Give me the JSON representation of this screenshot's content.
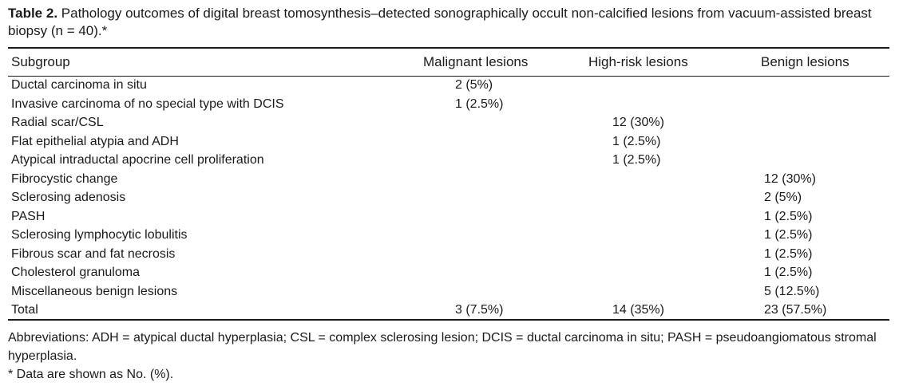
{
  "caption": {
    "label": "Table 2.",
    "text": " Pathology outcomes of digital breast tomosynthesis–detected sonographically occult non-calcified lesions from vacuum-assisted breast biopsy (n = 40).*"
  },
  "table": {
    "headers": {
      "subgroup": "Subgroup",
      "malignant": "Malignant lesions",
      "high_risk": "High-risk lesions",
      "benign": "Benign lesions"
    },
    "rows": [
      {
        "subgroup": "Ductal carcinoma in situ",
        "malignant": "2 (5%)",
        "high_risk": "",
        "benign": ""
      },
      {
        "subgroup": "Invasive carcinoma of no special type with DCIS",
        "malignant": "1 (2.5%)",
        "high_risk": "",
        "benign": ""
      },
      {
        "subgroup": "Radial scar/CSL",
        "malignant": "",
        "high_risk": "12 (30%)",
        "benign": ""
      },
      {
        "subgroup": "Flat epithelial atypia and ADH",
        "malignant": "",
        "high_risk": "1 (2.5%)",
        "benign": ""
      },
      {
        "subgroup": "Atypical intraductal apocrine cell proliferation",
        "malignant": "",
        "high_risk": "1 (2.5%)",
        "benign": ""
      },
      {
        "subgroup": "Fibrocystic change",
        "malignant": "",
        "high_risk": "",
        "benign": "12 (30%)"
      },
      {
        "subgroup": "Sclerosing adenosis",
        "malignant": "",
        "high_risk": "",
        "benign": "2 (5%)"
      },
      {
        "subgroup": "PASH",
        "malignant": "",
        "high_risk": "",
        "benign": "1 (2.5%)"
      },
      {
        "subgroup": "Sclerosing lymphocytic lobulitis",
        "malignant": "",
        "high_risk": "",
        "benign": "1 (2.5%)"
      },
      {
        "subgroup": "Fibrous scar and fat necrosis",
        "malignant": "",
        "high_risk": "",
        "benign": "1 (2.5%)"
      },
      {
        "subgroup": "Cholesterol granuloma",
        "malignant": "",
        "high_risk": "",
        "benign": "1 (2.5%)"
      },
      {
        "subgroup": "Miscellaneous benign lesions",
        "malignant": "",
        "high_risk": "",
        "benign": "5 (12.5%)"
      },
      {
        "subgroup": "Total",
        "malignant": "3 (7.5%)",
        "high_risk": "14 (35%)",
        "benign": "23 (57.5%)"
      }
    ]
  },
  "notes": {
    "abbreviations": "Abbreviations: ADH = atypical ductal hyperplasia; CSL = complex sclerosing lesion; DCIS = ductal carcinoma in situ; PASH = pseudoangiomatous stromal hyperplasia.",
    "footnote": "* Data are shown as No. (%)."
  }
}
